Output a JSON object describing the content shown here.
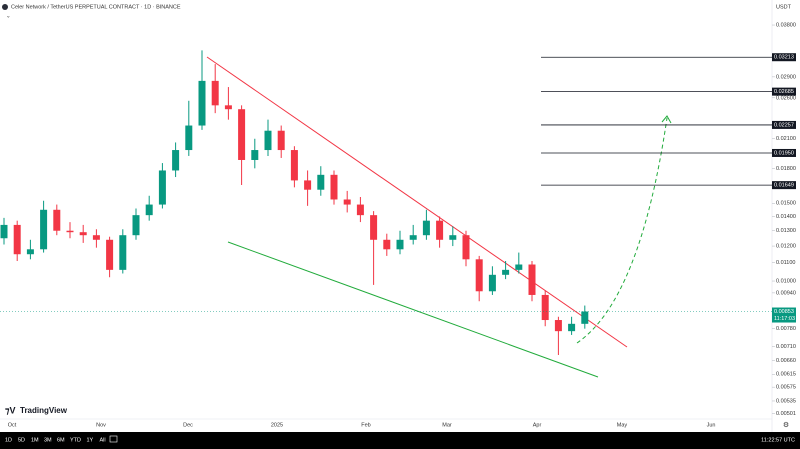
{
  "chart_data": {
    "type": "candlestick",
    "title": "Celer Network / TetherUS PERPETUAL CONTRACT · 1D · BINANCE",
    "currency": "USDT",
    "brand": "TradingView",
    "log_scale": true,
    "up_color": "#089981",
    "down_color": "#f23645",
    "ylim": [
      0.00472,
      0.0433
    ],
    "yticks": [
      {
        "value": 0.038,
        "label": "0.03800"
      },
      {
        "value": 0.029,
        "label": "0.02900"
      },
      {
        "value": 0.026,
        "label": "0.02600"
      },
      {
        "value": 0.021,
        "label": "0.02100"
      },
      {
        "value": 0.018,
        "label": "0.01800"
      },
      {
        "value": 0.015,
        "label": "0.01500"
      },
      {
        "value": 0.014,
        "label": "0.01400"
      },
      {
        "value": 0.013,
        "label": "0.01300"
      },
      {
        "value": 0.012,
        "label": "0.01200"
      },
      {
        "value": 0.011,
        "label": "0.01100"
      },
      {
        "value": 0.01,
        "label": "0.01000"
      },
      {
        "value": 0.0094,
        "label": "0.00940"
      },
      {
        "value": 0.0078,
        "label": "0.00780"
      },
      {
        "value": 0.0071,
        "label": "0.00710"
      },
      {
        "value": 0.0066,
        "label": "0.00660"
      },
      0.00615,
      0.00575,
      0.00535,
      0.00501
    ],
    "xticks": [
      "Oct",
      "Nov",
      "Dec",
      "2025",
      "Feb",
      "Mar",
      "Apr",
      "May",
      "Jun"
    ],
    "open": [
      0.0125,
      0.0134,
      0.0115,
      0.0118,
      0.0145,
      0.013,
      0.0129,
      0.0127,
      0.0124,
      0.0106,
      0.0127,
      0.0141,
      0.0149,
      0.0178,
      0.0198,
      0.0225,
      0.0284,
      0.025,
      0.0245,
      0.0188,
      0.0198,
      0.0219,
      0.0198,
      0.0169,
      0.0161,
      0.0174,
      0.0153,
      0.0149,
      0.0141,
      0.0124,
      0.0118,
      0.0124,
      0.0127,
      0.0137,
      0.0124,
      0.0127,
      0.0112,
      0.00948,
      0.01033,
      0.0106,
      0.0109,
      0.0093,
      0.00816,
      0.0077,
      0.008
    ],
    "high": [
      0.0139,
      0.0137,
      0.0124,
      0.0152,
      0.0149,
      0.0136,
      0.0134,
      0.0131,
      0.0126,
      0.0131,
      0.0146,
      0.0156,
      0.0185,
      0.0206,
      0.0256,
      0.0333,
      0.031,
      0.0275,
      0.025,
      0.021,
      0.0232,
      0.0225,
      0.0202,
      0.0178,
      0.0182,
      0.0178,
      0.016,
      0.0155,
      0.0144,
      0.0128,
      0.013,
      0.0134,
      0.0145,
      0.014,
      0.0133,
      0.013,
      0.0114,
      0.0108,
      0.0111,
      0.0116,
      0.0111,
      0.0095,
      0.0083,
      0.0083,
      0.0088
    ],
    "low": [
      0.0121,
      0.0111,
      0.0112,
      0.0116,
      0.0127,
      0.0125,
      0.0122,
      0.0119,
      0.0102,
      0.0104,
      0.0124,
      0.0137,
      0.0146,
      0.0172,
      0.0192,
      0.022,
      0.024,
      0.0232,
      0.0165,
      0.018,
      0.0192,
      0.019,
      0.0163,
      0.0148,
      0.0156,
      0.0149,
      0.0143,
      0.0136,
      0.0098,
      0.0114,
      0.0115,
      0.0121,
      0.0124,
      0.0119,
      0.012,
      0.0108,
      0.009,
      0.0093,
      0.0101,
      0.0104,
      0.009,
      0.0079,
      0.0068,
      0.00755,
      0.0078
    ],
    "close": [
      0.0134,
      0.0115,
      0.0118,
      0.0145,
      0.013,
      0.0129,
      0.0127,
      0.0124,
      0.0106,
      0.0127,
      0.0141,
      0.0149,
      0.0178,
      0.0198,
      0.0225,
      0.0284,
      0.025,
      0.0245,
      0.0188,
      0.0198,
      0.0219,
      0.0198,
      0.0169,
      0.0161,
      0.0174,
      0.0153,
      0.0149,
      0.0141,
      0.0124,
      0.0118,
      0.0124,
      0.0127,
      0.0137,
      0.0124,
      0.0127,
      0.0112,
      0.00948,
      0.01033,
      0.0106,
      0.0109,
      0.0093,
      0.00816,
      0.0077,
      0.008,
      0.00853
    ],
    "levels": [
      0.03213,
      0.02685,
      0.02257,
      {
        "value": 0.0195,
        "label": "0.01950"
      },
      0.01649
    ],
    "price": 0.00853,
    "countdown": "11:17:03",
    "ranges": [
      "1D",
      "5D",
      "1M",
      "3M",
      "6M",
      "YTD",
      "1Y",
      "All"
    ],
    "clock": "11:22:57 UTC"
  }
}
